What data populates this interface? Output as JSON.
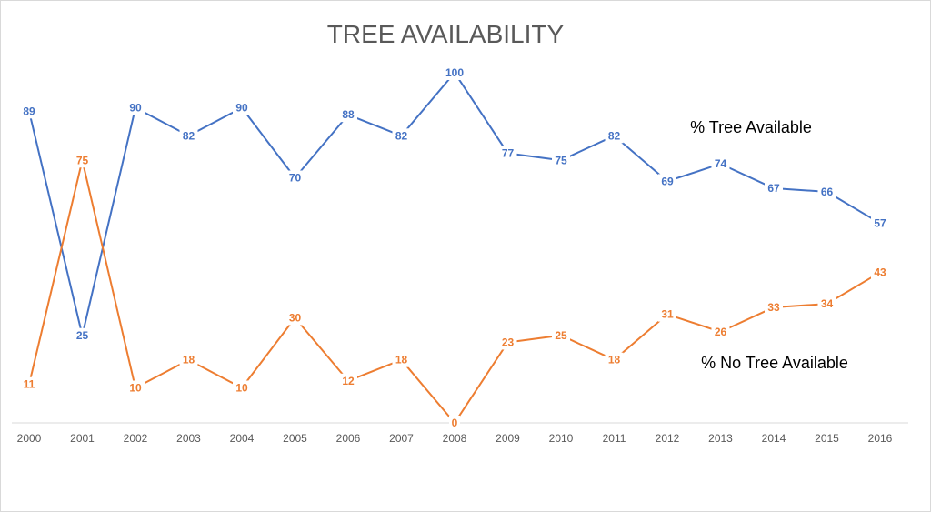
{
  "chart_data": {
    "type": "line",
    "title": "TREE AVAILABILITY",
    "xlabel": "",
    "ylabel": "",
    "categories": [
      "2000",
      "2001",
      "2002",
      "2003",
      "2004",
      "2005",
      "2006",
      "2007",
      "2008",
      "2009",
      "2010",
      "2011",
      "2012",
      "2013",
      "2014",
      "2015",
      "2016"
    ],
    "ylim": [
      0,
      100
    ],
    "grid": false,
    "legend": "none",
    "series": [
      {
        "name": "% Tree Available",
        "color": "#4472c4",
        "values": [
          89,
          25,
          90,
          82,
          90,
          70,
          88,
          82,
          100,
          77,
          75,
          82,
          69,
          74,
          67,
          66,
          57
        ]
      },
      {
        "name": "% No Tree Available",
        "color": "#ed7d31",
        "values": [
          11,
          75,
          10,
          18,
          10,
          30,
          12,
          18,
          0,
          23,
          25,
          18,
          31,
          26,
          33,
          34,
          43
        ]
      }
    ]
  }
}
